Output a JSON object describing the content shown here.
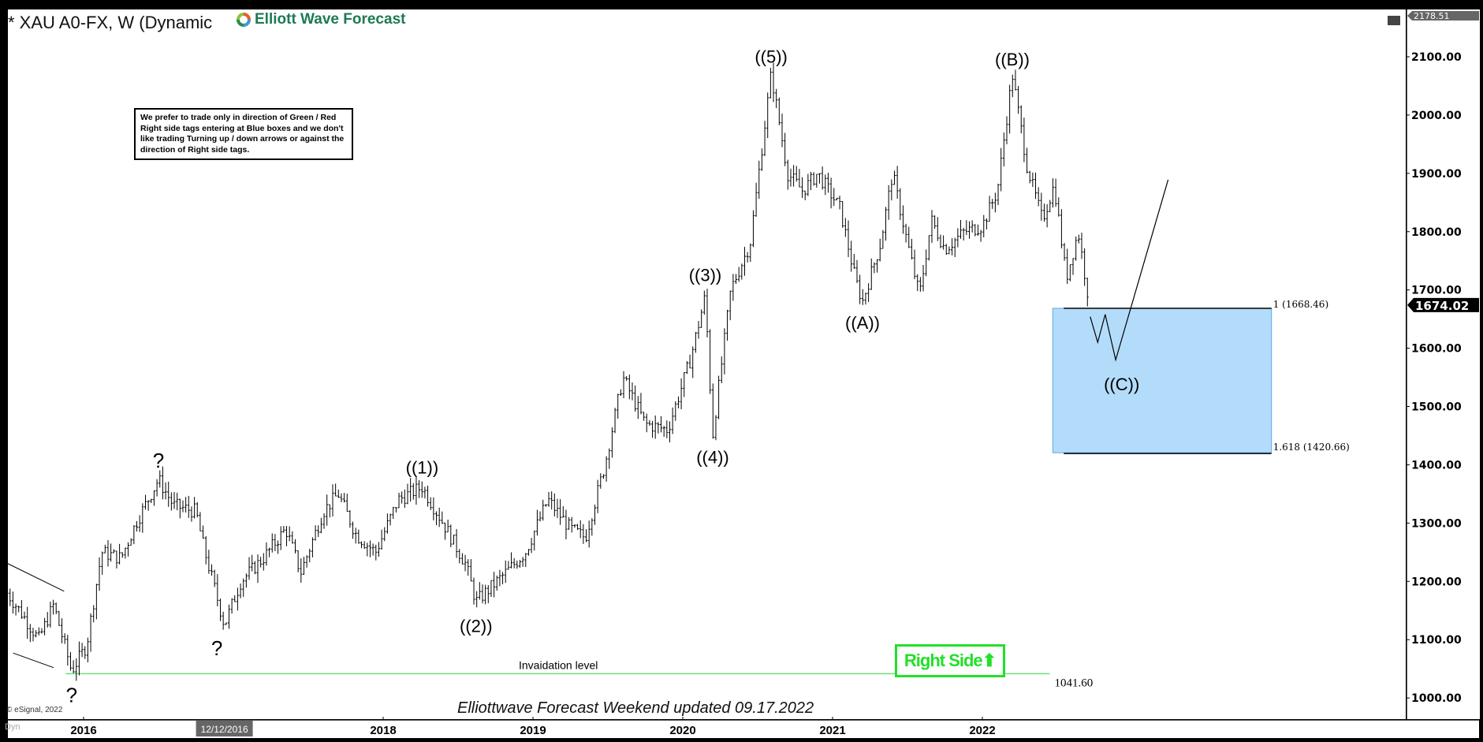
{
  "header": {
    "title": "* XAU A0-FX, W (Dynamic",
    "logo_text": "Elliott Wave Forecast"
  },
  "note": "We prefer to trade only in direction of Green / Red Right side tags entering at Blue boxes and we don't like trading Turning up / down arrows or against the direction of Right side tags.",
  "right_side_label": "Right Side",
  "footer": "Elliottwave Forecast Weekend updated 09.17.2022",
  "copyright": "© eSignal, 2022",
  "dyn_label": "Dyn",
  "colors": {
    "blue_box": "#b3dcfb",
    "invalidation": "#6ee07a",
    "right_side": "#22e02a"
  },
  "chart_data": {
    "type": "ohlc-bar",
    "timeframe": "W",
    "ylim": [
      978,
      2178.51
    ],
    "xlim": [
      2015.49,
      2024.83
    ],
    "y_ticks": [
      1000,
      1100,
      1200,
      1300,
      1400,
      1500,
      1600,
      1700,
      1800,
      1900,
      2000,
      2100
    ],
    "y_tick_labels": [
      "1000.00",
      "1100.00",
      "1200.00",
      "1300.00",
      "1400.00",
      "1500.00",
      "1600.00",
      "1700.00",
      "1800.00",
      "1900.00",
      "2000.00",
      "2100.00"
    ],
    "x_ticks": [
      {
        "x": 2016,
        "label": "2016"
      },
      {
        "x": 2016.94,
        "label": "12/12/2016",
        "highlight": true
      },
      {
        "x": 2018,
        "label": "2018"
      },
      {
        "x": 2019,
        "label": "2019"
      },
      {
        "x": 2020,
        "label": "2020"
      },
      {
        "x": 2021,
        "label": "2021"
      },
      {
        "x": 2022,
        "label": "2022"
      }
    ],
    "top_price": "2178.51",
    "last_price": 1674.02,
    "last_price_label": "1674.02",
    "price_path": [
      [
        2015.49,
        1180
      ],
      [
        2015.6,
        1140
      ],
      [
        2015.7,
        1100
      ],
      [
        2015.8,
        1160
      ],
      [
        2015.92,
        1046
      ],
      [
        2016.02,
        1090
      ],
      [
        2016.12,
        1250
      ],
      [
        2016.25,
        1240
      ],
      [
        2016.35,
        1300
      ],
      [
        2016.5,
        1375
      ],
      [
        2016.6,
        1330
      ],
      [
        2016.75,
        1320
      ],
      [
        2016.8,
        1260
      ],
      [
        2016.94,
        1125
      ],
      [
        2017.05,
        1200
      ],
      [
        2017.2,
        1240
      ],
      [
        2017.35,
        1290
      ],
      [
        2017.45,
        1215
      ],
      [
        2017.6,
        1320
      ],
      [
        2017.7,
        1350
      ],
      [
        2017.82,
        1280
      ],
      [
        2017.95,
        1250
      ],
      [
        2018.1,
        1340
      ],
      [
        2018.26,
        1362
      ],
      [
        2018.4,
        1300
      ],
      [
        2018.55,
        1230
      ],
      [
        2018.62,
        1165
      ],
      [
        2018.8,
        1210
      ],
      [
        2018.95,
        1250
      ],
      [
        2019.1,
        1340
      ],
      [
        2019.25,
        1290
      ],
      [
        2019.35,
        1275
      ],
      [
        2019.48,
        1400
      ],
      [
        2019.6,
        1550
      ],
      [
        2019.75,
        1470
      ],
      [
        2019.9,
        1460
      ],
      [
        2020.05,
        1580
      ],
      [
        2020.15,
        1690
      ],
      [
        2020.2,
        1450
      ],
      [
        2020.32,
        1700
      ],
      [
        2020.45,
        1780
      ],
      [
        2020.59,
        2072
      ],
      [
        2020.7,
        1900
      ],
      [
        2020.8,
        1870
      ],
      [
        2020.9,
        1900
      ],
      [
        2021.05,
        1840
      ],
      [
        2021.15,
        1720
      ],
      [
        2021.2,
        1680
      ],
      [
        2021.32,
        1780
      ],
      [
        2021.4,
        1900
      ],
      [
        2021.5,
        1780
      ],
      [
        2021.58,
        1690
      ],
      [
        2021.66,
        1820
      ],
      [
        2021.75,
        1770
      ],
      [
        2021.88,
        1800
      ],
      [
        2022.0,
        1810
      ],
      [
        2022.1,
        1870
      ],
      [
        2022.2,
        2070
      ],
      [
        2022.3,
        1910
      ],
      [
        2022.4,
        1820
      ],
      [
        2022.48,
        1880
      ],
      [
        2022.56,
        1720
      ],
      [
        2022.64,
        1800
      ],
      [
        2022.7,
        1700
      ],
      [
        2022.72,
        1674
      ]
    ],
    "wave_labels": [
      {
        "text": "?",
        "x": 2016.5,
        "y": 1395,
        "pos": "above"
      },
      {
        "text": "?",
        "x": 2016.89,
        "y": 1100,
        "pos": "below"
      },
      {
        "text": "?",
        "x": 2015.92,
        "y": 1020,
        "pos": "below"
      },
      {
        "text": "((1))",
        "x": 2018.26,
        "y": 1385,
        "pos": "above"
      },
      {
        "text": "((2))",
        "x": 2018.62,
        "y": 1140,
        "pos": "below"
      },
      {
        "text": "((3))",
        "x": 2020.15,
        "y": 1715,
        "pos": "above"
      },
      {
        "text": "((4))",
        "x": 2020.2,
        "y": 1430,
        "pos": "below"
      },
      {
        "text": "((5))",
        "x": 2020.59,
        "y": 2090,
        "pos": "above"
      },
      {
        "text": "((A))",
        "x": 2021.2,
        "y": 1660,
        "pos": "below"
      },
      {
        "text": "((B))",
        "x": 2022.2,
        "y": 2085,
        "pos": "above"
      },
      {
        "text": "((C))",
        "x": 2022.93,
        "y": 1555,
        "pos": "below"
      }
    ],
    "projection": [
      [
        2022.72,
        1654
      ],
      [
        2022.77,
        1610
      ],
      [
        2022.82,
        1658
      ],
      [
        2022.89,
        1580
      ],
      [
        2023.24,
        1889
      ]
    ],
    "blue_box": {
      "x0": 2022.47,
      "x1": 2023.93,
      "top": 1668.46,
      "bottom": 1420.66,
      "top_label": "1 (1668.46)",
      "bottom_label": "1.618 (1420.66)"
    },
    "invalidation": {
      "price": 1041.6,
      "x0": 2015.88,
      "x1": 2022.45,
      "label": "Invaidation level",
      "price_label": "1041.60"
    },
    "wedge_lines": [
      [
        [
          2015.49,
          1231
        ],
        [
          2015.87,
          1183
        ]
      ],
      [
        [
          2015.53,
          1077
        ],
        [
          2015.8,
          1052
        ]
      ]
    ]
  }
}
